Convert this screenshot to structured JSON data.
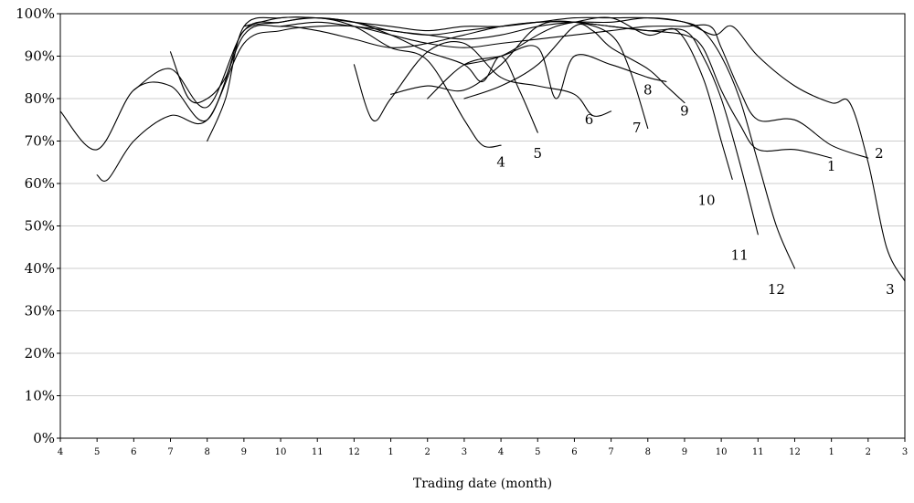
{
  "chart_data": {
    "type": "line",
    "title": "",
    "xlabel": "Trading date (month)",
    "ylabel": "",
    "ylim": [
      0,
      100
    ],
    "y_tick_labels": [
      "0%",
      "10%",
      "20%",
      "30%",
      "40%",
      "50%",
      "60%",
      "70%",
      "80%",
      "90%",
      "100%"
    ],
    "x_tick_labels": [
      "4",
      "5",
      "6",
      "7",
      "8",
      "9",
      "10",
      "11",
      "12",
      "1",
      "2",
      "3",
      "4",
      "5",
      "6",
      "7",
      "8",
      "9",
      "10",
      "11",
      "12",
      "1",
      "2",
      "3"
    ],
    "grid": true,
    "legend": "none",
    "line_color": "#000000",
    "grid_color": "#bdbdbd",
    "series": [
      {
        "name": "1",
        "x": [
          0.0,
          1.0,
          2.0,
          3.0,
          4.0,
          5.0,
          6.0,
          7.0,
          8.0,
          9.0,
          10.0,
          11.0,
          12.0,
          13.0,
          14.0,
          15.0,
          16.0,
          17.0,
          17.5,
          18.0,
          18.5,
          19.0,
          20.0,
          21.0
        ],
        "y": [
          77,
          68,
          82,
          83,
          75,
          95,
          97,
          96,
          94,
          92,
          93,
          95,
          97,
          98,
          98,
          97,
          96,
          95,
          92,
          82,
          74,
          68,
          68,
          66
        ]
      },
      {
        "name": "2",
        "x": [
          1.0,
          1.3,
          2.0,
          3.0,
          4.0,
          5.0,
          6.0,
          7.0,
          8.0,
          9.0,
          10.0,
          11.0,
          12.0,
          13.0,
          14.0,
          15.0,
          16.0,
          17.0,
          17.7,
          18.0,
          18.5,
          19.0,
          20.0,
          21.0,
          22.0
        ],
        "y": [
          62,
          61,
          70,
          76,
          75,
          93,
          96,
          97,
          97,
          95,
          93,
          92,
          93,
          94,
          95,
          96,
          97,
          97,
          97,
          92,
          82,
          75,
          75,
          69,
          66
        ]
      },
      {
        "name": "3",
        "x": [
          2.0,
          3.0,
          4.0,
          5.0,
          6.0,
          7.0,
          8.0,
          9.0,
          10.0,
          11.0,
          12.0,
          13.0,
          14.0,
          15.0,
          16.0,
          17.0,
          17.8,
          18.3,
          19.0,
          20.0,
          21.0,
          21.5,
          22.0,
          22.5,
          23.0
        ],
        "y": [
          82,
          87,
          78,
          96,
          98,
          99,
          98,
          96,
          95,
          94,
          95,
          97,
          98,
          98,
          99,
          98,
          95,
          97,
          90,
          83,
          79,
          79,
          65,
          45,
          37
        ]
      },
      {
        "name": "4",
        "x": [
          3.0,
          3.5,
          4.0,
          4.5,
          5.0,
          6.0,
          7.0,
          8.0,
          9.0,
          10.0,
          11.0,
          11.5,
          12.0
        ],
        "y": [
          91,
          80,
          80,
          85,
          96,
          98,
          99,
          97,
          92,
          89,
          75,
          69,
          69
        ]
      },
      {
        "name": "5",
        "x": [
          4.0,
          4.5,
          5.0,
          6.0,
          7.0,
          8.0,
          9.0,
          10.0,
          11.0,
          11.5,
          12.0,
          12.5,
          13.0
        ],
        "y": [
          70,
          80,
          97,
          99,
          99,
          98,
          95,
          91,
          88,
          84,
          90,
          82,
          72
        ]
      },
      {
        "name": "6",
        "x": [
          8.0,
          8.5,
          9.0,
          10.0,
          11.0,
          12.0,
          13.0,
          14.0,
          14.5,
          15.0
        ],
        "y": [
          88,
          75,
          80,
          91,
          93,
          85,
          83,
          81,
          76,
          77
        ]
      },
      {
        "name": "7",
        "x": [
          9.0,
          10.0,
          11.0,
          12.0,
          13.0,
          14.0,
          15.0,
          15.5,
          16.0
        ],
        "y": [
          81,
          83,
          82,
          88,
          97,
          98,
          95,
          87,
          73
        ]
      },
      {
        "name": "8",
        "x": [
          10.0,
          11.0,
          12.0,
          13.0,
          13.5,
          14.0,
          15.0,
          16.0,
          16.5
        ],
        "y": [
          80,
          88,
          90,
          92,
          80,
          90,
          88,
          85,
          84
        ]
      },
      {
        "name": "9",
        "x": [
          11.0,
          12.0,
          13.0,
          14.0,
          14.5,
          15.0,
          16.0,
          16.5,
          17.0
        ],
        "y": [
          80,
          83,
          88,
          97,
          96,
          92,
          87,
          83,
          79
        ]
      },
      {
        "name": "10",
        "x": [
          11.0,
          12.0,
          13.0,
          13.5,
          14.0,
          15.0,
          16.0,
          16.8,
          17.5,
          18.0,
          18.3
        ],
        "y": [
          88,
          90,
          95,
          97,
          98,
          99,
          95,
          96,
          85,
          70,
          61
        ]
      },
      {
        "name": "11",
        "x": [
          6.0,
          7.0,
          8.0,
          9.0,
          10.0,
          11.0,
          12.0,
          13.0,
          14.0,
          15.0,
          16.0,
          17.0,
          17.5,
          18.0,
          18.5,
          19.0
        ],
        "y": [
          97,
          98,
          97,
          96,
          95,
          96,
          97,
          98,
          98,
          97,
          96,
          96,
          90,
          80,
          65,
          48
        ]
      },
      {
        "name": "12",
        "x": [
          5.0,
          6.0,
          7.0,
          8.0,
          9.0,
          10.0,
          11.0,
          12.0,
          13.0,
          14.0,
          15.0,
          16.0,
          17.0,
          17.5,
          18.0,
          18.5,
          19.0,
          19.5,
          20.0
        ],
        "y": [
          97,
          99,
          99,
          98,
          97,
          96,
          97,
          97,
          98,
          99,
          99,
          99,
          98,
          96,
          90,
          80,
          65,
          50,
          40
        ]
      }
    ],
    "series_labels": [
      {
        "text": "1",
        "x": 21.0,
        "y": 63
      },
      {
        "text": "2",
        "x": 22.3,
        "y": 66
      },
      {
        "text": "3",
        "x": 22.6,
        "y": 34
      },
      {
        "text": "4",
        "x": 12.0,
        "y": 64
      },
      {
        "text": "5",
        "x": 13.0,
        "y": 66
      },
      {
        "text": "6",
        "x": 14.4,
        "y": 74
      },
      {
        "text": "7",
        "x": 15.7,
        "y": 72
      },
      {
        "text": "8",
        "x": 16.0,
        "y": 81
      },
      {
        "text": "9",
        "x": 17.0,
        "y": 76
      },
      {
        "text": "10",
        "x": 17.6,
        "y": 55
      },
      {
        "text": "11",
        "x": 18.5,
        "y": 42
      },
      {
        "text": "12",
        "x": 19.5,
        "y": 34
      }
    ]
  }
}
